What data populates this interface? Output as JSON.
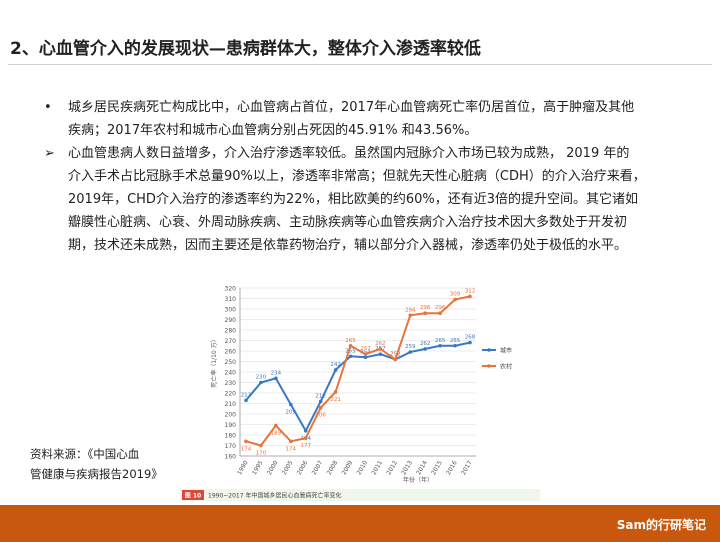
{
  "header": {
    "title": "2、心血管介入的发展现状—患病群体大，整体介入渗透率较低"
  },
  "bullets": [
    {
      "marker": "•",
      "lines": [
        "城乡居民疾病死亡构成比中，心血管病占首位，2017年心血管病死亡率仍居首位，高于肿瘤及其他",
        "疾病；2017年农村和城市心血管病分别占死因的45.91% 和43.56%。"
      ]
    },
    {
      "marker": "➢",
      "lines": [
        "心血管患病人数日益增多，介入治疗渗透率较低。虽然国内冠脉介入市场已较为成熟， 2019 年的",
        "介入手术占比冠脉手术总量90%以上，渗透率非常高；但就先天性心脏病（CDH）的介入治疗来看，",
        "2019年，CHD介入治疗的渗透率约为22%，相比欧美的约60%，还有近3倍的提升空间。其它诸如",
        "瓣膜性心脏病、心衰、外周动脉疾病、主动脉疾病等心血管疾病介入治疗技术因大多数处于开发初",
        "期，技术还未成熟，因而主要还是依靠药物治疗，辅以部分介入器械，渗透率仍处于极低的水平。"
      ]
    }
  ],
  "source": {
    "lines": [
      "资料来源：《中国心血",
      "管健康与疾病报告2019》"
    ]
  },
  "footer": {
    "text": "Sam的行研笔记"
  },
  "chart_data": {
    "type": "line",
    "title": "",
    "caption_badge": "图 10",
    "caption": "1990~2017 年中国城乡居民心血管病死亡率变化",
    "xlabel": "年份（年）",
    "ylabel": "死亡率（1/10 万）",
    "ylim": [
      160,
      320
    ],
    "yticks": [
      160,
      170,
      180,
      190,
      200,
      210,
      220,
      230,
      240,
      250,
      260,
      270,
      280,
      290,
      300,
      310,
      320
    ],
    "x": [
      "1990",
      "1995",
      "2000",
      "2005",
      "2006",
      "2007",
      "2008",
      "2009",
      "2010",
      "2011",
      "2012",
      "2013",
      "2014",
      "2015",
      "2016",
      "2017"
    ],
    "series": [
      {
        "name": "城市",
        "color": "#3a78c3",
        "values": [
          213,
          230,
          234,
          209,
          184,
          212,
          242,
          255,
          254,
          257,
          252,
          259,
          262,
          265,
          265,
          268
        ]
      },
      {
        "name": "农村",
        "color": "#e8743b",
        "values": [
          174,
          170,
          189,
          174,
          177,
          206,
          221,
          265,
          257,
          262,
          252,
          294,
          296,
          296,
          309,
          312
        ]
      }
    ],
    "legend_position": "right",
    "grid": true
  },
  "colors": {
    "accent": "#c9580f",
    "city_line": "#3a78c3",
    "rural_line": "#e8743b"
  }
}
